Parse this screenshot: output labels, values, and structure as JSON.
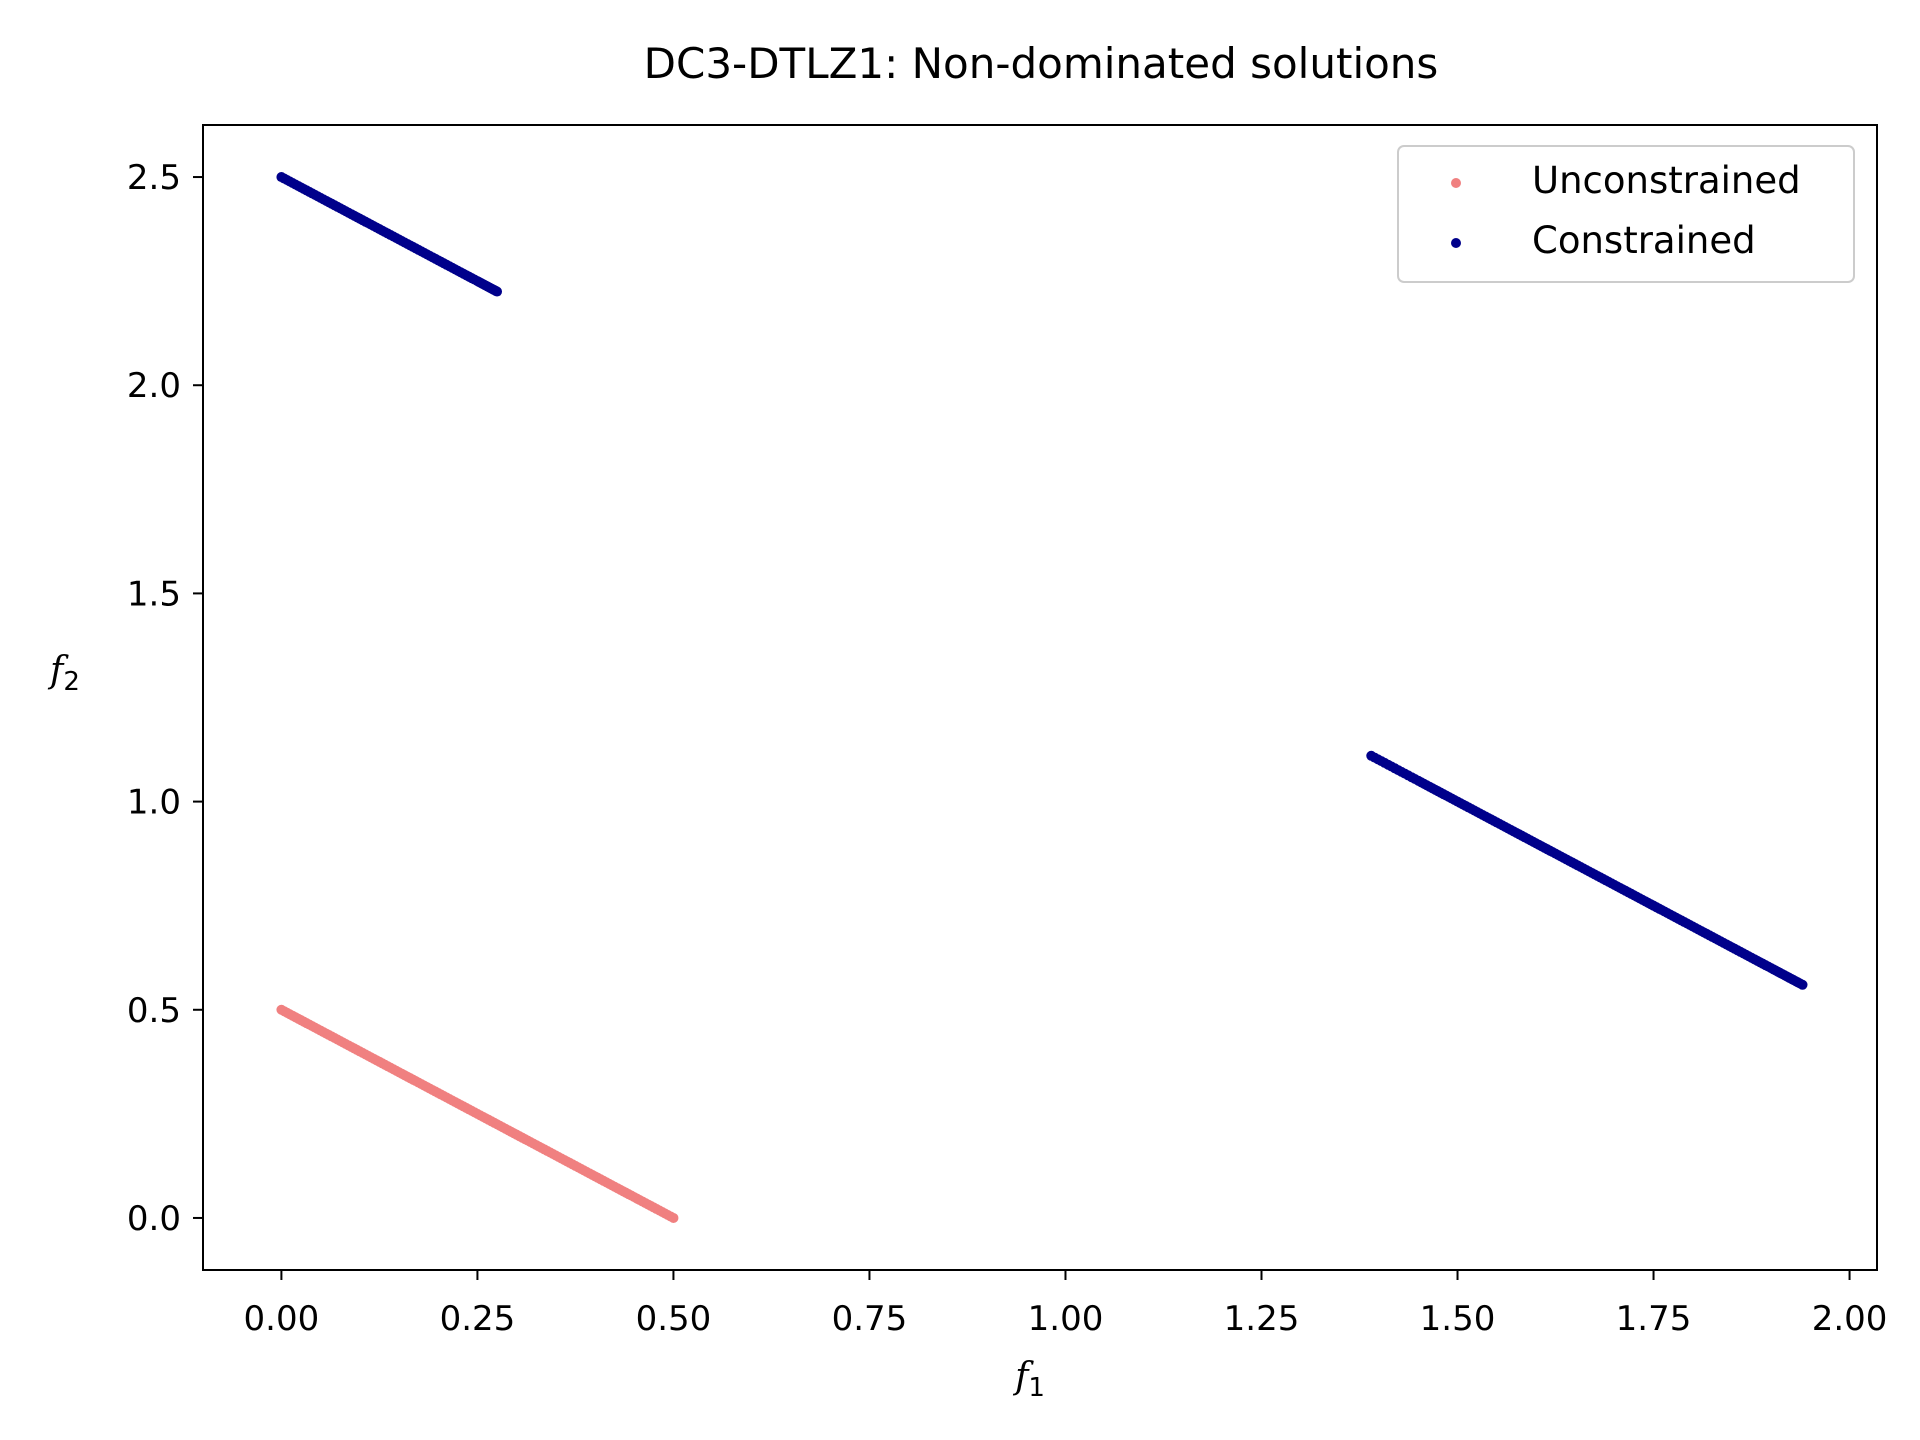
{
  "chart_data": {
    "type": "scatter",
    "title": "DC3-DTLZ1: Non-dominated solutions",
    "xlabel": {
      "base": "f",
      "sub": "1"
    },
    "ylabel": {
      "base": "f",
      "sub": "2"
    },
    "xlim": [
      -0.1,
      2.035
    ],
    "ylim": [
      -0.125,
      2.625
    ],
    "xticks": [
      0.0,
      0.25,
      0.5,
      0.75,
      1.0,
      1.25,
      1.5,
      1.75,
      2.0
    ],
    "xtick_labels": [
      "0.00",
      "0.25",
      "0.50",
      "0.75",
      "1.00",
      "1.25",
      "1.50",
      "1.75",
      "2.00"
    ],
    "yticks": [
      0.0,
      0.5,
      1.0,
      1.5,
      2.0,
      2.5
    ],
    "ytick_labels": [
      "0.0",
      "0.5",
      "1.0",
      "1.5",
      "2.0",
      "2.5"
    ],
    "grid": false,
    "legend_position": "top-right",
    "series": [
      {
        "name": "Unconstrained",
        "color": "#f08080",
        "relation": "f1 + f2 = 0.5",
        "x_range": [
          0.0,
          0.5
        ],
        "points": [
          [
            0.0,
            0.5
          ],
          [
            0.05,
            0.45
          ],
          [
            0.1,
            0.4
          ],
          [
            0.15,
            0.35
          ],
          [
            0.2,
            0.3
          ],
          [
            0.25,
            0.25
          ],
          [
            0.3,
            0.2
          ],
          [
            0.35,
            0.15
          ],
          [
            0.4,
            0.1
          ],
          [
            0.45,
            0.05
          ],
          [
            0.5,
            0.0
          ]
        ]
      },
      {
        "name": "Constrained",
        "color": "#00008b",
        "relation": "f1 + f2 = 2.5",
        "segments": [
          {
            "x_range": [
              0.0,
              0.275
            ],
            "points": [
              [
                0.0,
                2.5
              ],
              [
                0.05,
                2.45
              ],
              [
                0.1,
                2.4
              ],
              [
                0.15,
                2.35
              ],
              [
                0.2,
                2.3
              ],
              [
                0.25,
                2.25
              ],
              [
                0.275,
                2.225
              ]
            ]
          },
          {
            "x_range": [
              1.39,
              1.94
            ],
            "points": [
              [
                1.39,
                1.11
              ],
              [
                1.45,
                1.05
              ],
              [
                1.5,
                1.0
              ],
              [
                1.55,
                0.95
              ],
              [
                1.6,
                0.9
              ],
              [
                1.65,
                0.85
              ],
              [
                1.7,
                0.8
              ],
              [
                1.75,
                0.75
              ],
              [
                1.8,
                0.7
              ],
              [
                1.85,
                0.65
              ],
              [
                1.9,
                0.6
              ],
              [
                1.94,
                0.56
              ]
            ]
          }
        ]
      }
    ]
  }
}
